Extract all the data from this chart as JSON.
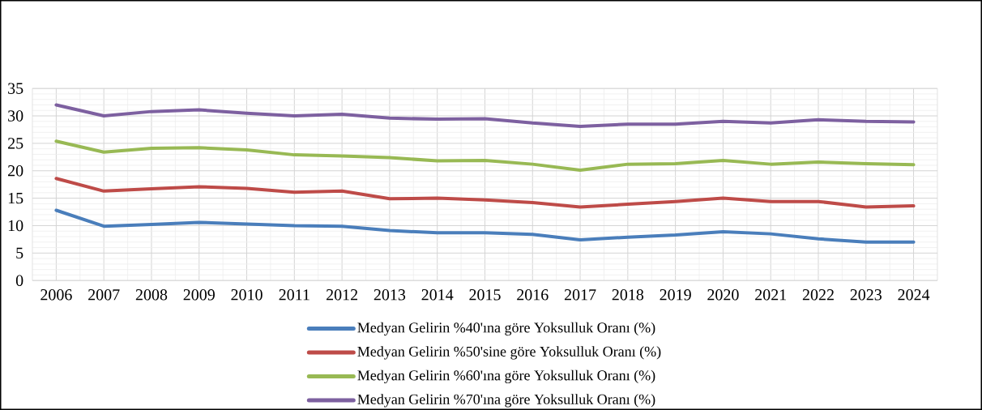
{
  "chart_data": {
    "type": "line",
    "categories": [
      "2006",
      "2007",
      "2008",
      "2009",
      "2010",
      "2011",
      "2012",
      "2013",
      "2014",
      "2015",
      "2016",
      "2017",
      "2018",
      "2019",
      "2020",
      "2021",
      "2022",
      "2023",
      "2024"
    ],
    "series": [
      {
        "name": "Medyan Gelirin %40'ına göre Yoksulluk Oranı (%)",
        "color": "#4a7ebb",
        "values": [
          12.8,
          9.9,
          10.2,
          10.6,
          10.3,
          10.0,
          9.9,
          9.1,
          8.7,
          8.7,
          8.4,
          7.4,
          7.9,
          8.3,
          8.9,
          8.5,
          7.6,
          7.0,
          7.0
        ]
      },
      {
        "name": "Medyan Gelirin %50'sine göre Yoksulluk Oranı (%)",
        "color": "#be4b48",
        "values": [
          18.6,
          16.3,
          16.7,
          17.1,
          16.8,
          16.1,
          16.3,
          14.9,
          15.0,
          14.7,
          14.2,
          13.4,
          13.9,
          14.4,
          15.0,
          14.4,
          14.4,
          13.4,
          13.6
        ]
      },
      {
        "name": "Medyan Gelirin %60'ına göre Yoksulluk Oranı (%)",
        "color": "#98b954",
        "values": [
          25.4,
          23.4,
          24.1,
          24.2,
          23.8,
          22.9,
          22.7,
          22.4,
          21.8,
          21.9,
          21.2,
          20.1,
          21.2,
          21.3,
          21.9,
          21.2,
          21.6,
          21.3,
          21.1
        ]
      },
      {
        "name": "Medyan Gelirin %70'ına göre Yoksulluk Oranı (%)",
        "color": "#7d60a0",
        "values": [
          32.0,
          30.0,
          30.8,
          31.1,
          30.5,
          30.0,
          30.3,
          29.6,
          29.4,
          29.5,
          28.7,
          28.1,
          28.5,
          28.5,
          29.0,
          28.7,
          29.3,
          29.0,
          28.9
        ]
      }
    ],
    "ylim": [
      0,
      35
    ],
    "yticks": [
      0,
      5,
      10,
      15,
      20,
      25,
      30,
      35
    ],
    "grid": true,
    "legend": "bottom",
    "marker": "none",
    "line_style": "solid"
  }
}
